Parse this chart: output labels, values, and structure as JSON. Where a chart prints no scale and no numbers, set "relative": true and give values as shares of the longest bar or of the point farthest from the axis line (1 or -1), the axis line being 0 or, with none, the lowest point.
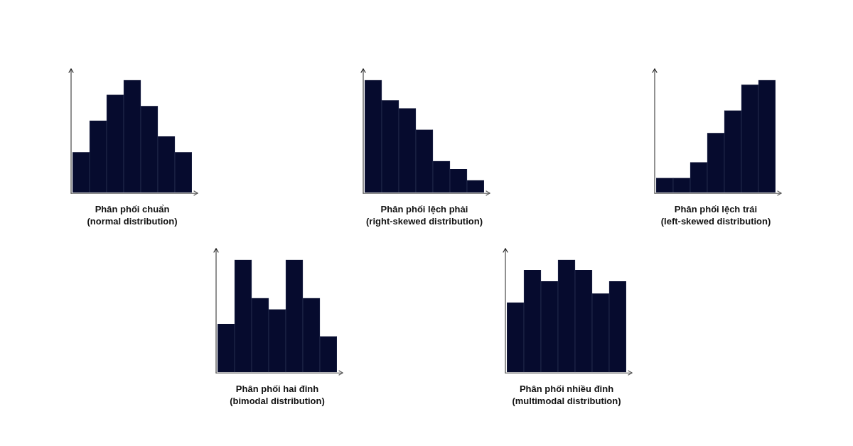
{
  "chart_data": [
    {
      "type": "bar",
      "xlabel": "Phân phối chuẩn\n(normal distribution)",
      "categories": [
        null,
        null,
        null,
        null,
        null,
        null,
        null
      ],
      "values": [
        0.36,
        0.64,
        0.87,
        1,
        0.77,
        0.5,
        0.36
      ],
      "color": "#060b2e",
      "relative": true
    },
    {
      "type": "bar",
      "xlabel": "Phân phối lệch phải\n(right-skewed distribution)",
      "categories": [
        null,
        null,
        null,
        null,
        null,
        null,
        null
      ],
      "values": [
        1,
        0.82,
        0.75,
        0.56,
        0.28,
        0.21,
        0.11
      ],
      "color": "#060b2e",
      "relative": true
    },
    {
      "type": "bar",
      "xlabel": "Phân phối lệch trái\n(left-skewed distribution)",
      "categories": [
        null,
        null,
        null,
        null,
        null,
        null,
        null
      ],
      "values": [
        0.13,
        0.13,
        0.27,
        0.53,
        0.73,
        0.96,
        1
      ],
      "color": "#060b2e",
      "relative": true
    },
    {
      "type": "bar",
      "xlabel": "Phân phối hai đỉnh\n(bimodal distribution)",
      "categories": [
        null,
        null,
        null,
        null,
        null,
        null,
        null
      ],
      "values": [
        0.43,
        1,
        0.66,
        0.56,
        1,
        0.66,
        0.32
      ],
      "color": "#060b2e",
      "relative": true
    },
    {
      "type": "bar",
      "xlabel": "Phân phối nhiều đỉnh\n(multimodal distribution)",
      "categories": [
        null,
        null,
        null,
        null,
        null,
        null,
        null
      ],
      "values": [
        0.62,
        0.91,
        0.81,
        1,
        0.91,
        0.7,
        0.81
      ],
      "color": "#060b2e",
      "relative": true
    }
  ]
}
